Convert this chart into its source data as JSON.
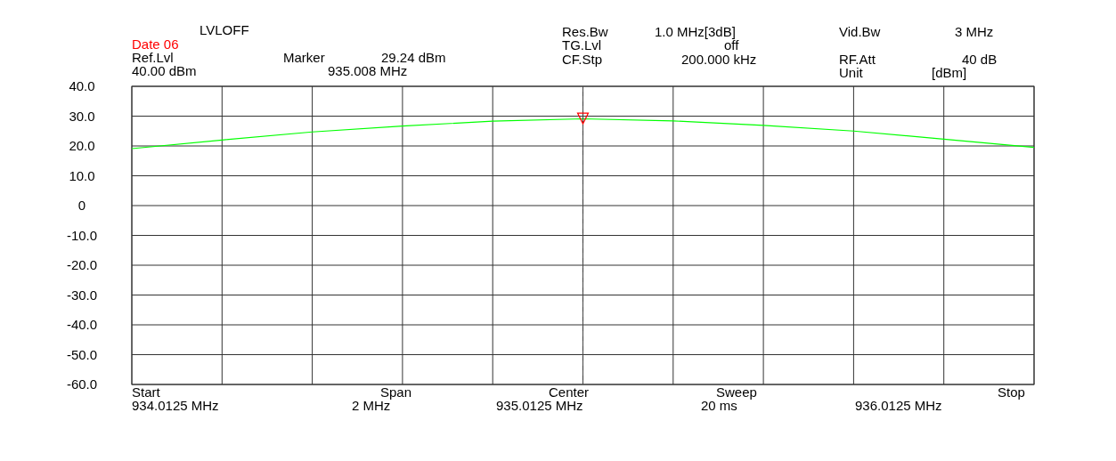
{
  "chart_data": {
    "type": "line",
    "categories": [
      null,
      null,
      null,
      null,
      null,
      null,
      null,
      null,
      null,
      null,
      null
    ],
    "series": [
      {
        "color": "#00ff00",
        "values": [
          19.1,
          22.0,
          24.7,
          26.7,
          28.3,
          29.1,
          28.4,
          26.9,
          25.0,
          22.3,
          19.5
        ]
      },
      {
        "type": "scatter",
        "marker": "triangle",
        "color": "#ff0000",
        "values": [
          null,
          null,
          null,
          null,
          null,
          29.24,
          null,
          null,
          null,
          null,
          null
        ]
      }
    ],
    "ylim": [
      -60,
      40
    ],
    "yticks": [
      {
        "value": -60,
        "label": "-60.0"
      },
      {
        "value": -50,
        "label": "-50.0"
      },
      {
        "value": -40,
        "label": "-40.0"
      },
      {
        "value": -30,
        "label": "-30.0"
      },
      {
        "value": -20,
        "label": "-20.0"
      },
      {
        "value": -10,
        "label": "-10.0"
      },
      {
        "value": 0,
        "label": "0"
      },
      {
        "value": 10,
        "label": "10.0"
      },
      {
        "value": 20,
        "label": "20.0"
      },
      {
        "value": 30,
        "label": "30.0"
      },
      {
        "value": 40,
        "label": "40.0"
      }
    ],
    "grid": true,
    "tick_labels": "y",
    "marker": "none",
    "line_style": "solid",
    "annotations": [
      "LVLOFF",
      "Date 06",
      "Ref.Lvl",
      "40.00 dBm",
      "Marker",
      "29.24 dBm",
      "935.008 MHz",
      "Res.Bw",
      "1.0 MHz[3dB]",
      "TG.Lvl",
      "off",
      "CF.Stp",
      "200.000 kHz",
      "Vid.Bw",
      "3 MHz",
      "RF.Att",
      "40 dB",
      "Unit",
      "[dBm]",
      "Start",
      "934.0125 MHz",
      "Span",
      "2 MHz",
      "Center",
      "935.0125 MHz",
      "Sweep",
      "20 ms",
      "Stop",
      "936.0125 MHz"
    ]
  }
}
